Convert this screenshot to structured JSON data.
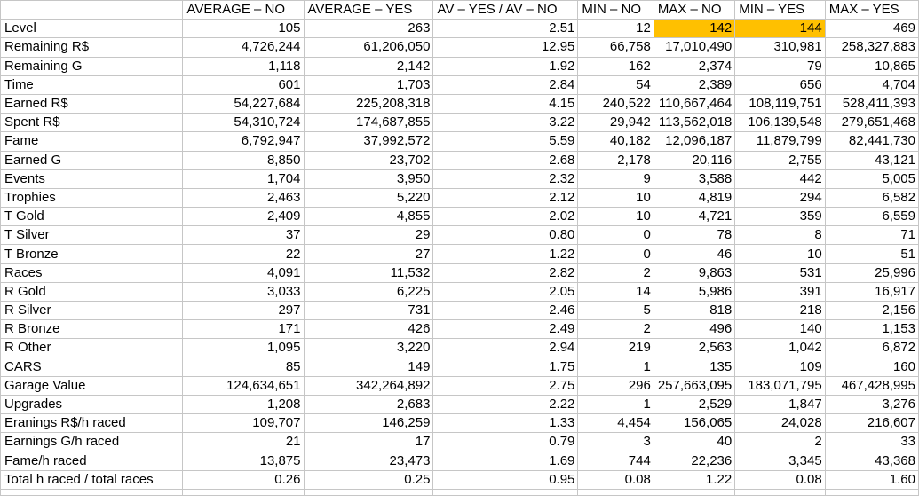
{
  "columns": [
    "AVERAGE – NO",
    "AVERAGE – YES",
    "AV – YES / AV – NO",
    "MIN – NO",
    "MAX – NO",
    "MIN – YES",
    "MAX – YES"
  ],
  "highlight_color": "#ffc000",
  "rows": [
    {
      "label": "Level",
      "values": [
        "105",
        "263",
        "2.51",
        "12",
        "142",
        "144",
        "469"
      ],
      "highlight": [
        4,
        5
      ]
    },
    {
      "label": "Remaining R$",
      "values": [
        "4,726,244",
        "61,206,050",
        "12.95",
        "66,758",
        "17,010,490",
        "310,981",
        "258,327,883"
      ]
    },
    {
      "label": "Remaining G",
      "values": [
        "1,118",
        "2,142",
        "1.92",
        "162",
        "2,374",
        "79",
        "10,865"
      ]
    },
    {
      "label": "Time",
      "values": [
        "601",
        "1,703",
        "2.84",
        "54",
        "2,389",
        "656",
        "4,704"
      ]
    },
    {
      "label": "Earned R$",
      "values": [
        "54,227,684",
        "225,208,318",
        "4.15",
        "240,522",
        "110,667,464",
        "108,119,751",
        "528,411,393"
      ]
    },
    {
      "label": "Spent R$",
      "values": [
        "54,310,724",
        "174,687,855",
        "3.22",
        "29,942",
        "113,562,018",
        "106,139,548",
        "279,651,468"
      ]
    },
    {
      "label": "Fame",
      "values": [
        "6,792,947",
        "37,992,572",
        "5.59",
        "40,182",
        "12,096,187",
        "11,879,799",
        "82,441,730"
      ]
    },
    {
      "label": "Earned G",
      "values": [
        "8,850",
        "23,702",
        "2.68",
        "2,178",
        "20,116",
        "2,755",
        "43,121"
      ]
    },
    {
      "label": "Events",
      "values": [
        "1,704",
        "3,950",
        "2.32",
        "9",
        "3,588",
        "442",
        "5,005"
      ]
    },
    {
      "label": "Trophies",
      "values": [
        "2,463",
        "5,220",
        "2.12",
        "10",
        "4,819",
        "294",
        "6,582"
      ]
    },
    {
      "label": "T Gold",
      "values": [
        "2,409",
        "4,855",
        "2.02",
        "10",
        "4,721",
        "359",
        "6,559"
      ]
    },
    {
      "label": "T Silver",
      "values": [
        "37",
        "29",
        "0.80",
        "0",
        "78",
        "8",
        "71"
      ]
    },
    {
      "label": "T Bronze",
      "values": [
        "22",
        "27",
        "1.22",
        "0",
        "46",
        "10",
        "51"
      ]
    },
    {
      "label": "Races",
      "values": [
        "4,091",
        "11,532",
        "2.82",
        "2",
        "9,863",
        "531",
        "25,996"
      ]
    },
    {
      "label": "R Gold",
      "values": [
        "3,033",
        "6,225",
        "2.05",
        "14",
        "5,986",
        "391",
        "16,917"
      ]
    },
    {
      "label": "R Silver",
      "values": [
        "297",
        "731",
        "2.46",
        "5",
        "818",
        "218",
        "2,156"
      ]
    },
    {
      "label": "R Bronze",
      "values": [
        "171",
        "426",
        "2.49",
        "2",
        "496",
        "140",
        "1,153"
      ]
    },
    {
      "label": "R Other",
      "values": [
        "1,095",
        "3,220",
        "2.94",
        "219",
        "2,563",
        "1,042",
        "6,872"
      ]
    },
    {
      "label": "CARS",
      "values": [
        "85",
        "149",
        "1.75",
        "1",
        "135",
        "109",
        "160"
      ]
    },
    {
      "label": "Garage Value",
      "values": [
        "124,634,651",
        "342,264,892",
        "2.75",
        "296",
        "257,663,095",
        "183,071,795",
        "467,428,995"
      ]
    },
    {
      "label": "Upgrades",
      "values": [
        "1,208",
        "2,683",
        "2.22",
        "1",
        "2,529",
        "1,847",
        "3,276"
      ]
    },
    {
      "label": "Eranings R$/h raced",
      "values": [
        "109,707",
        "146,259",
        "1.33",
        "4,454",
        "156,065",
        "24,028",
        "216,607"
      ]
    },
    {
      "label": "Earnings G/h raced",
      "values": [
        "21",
        "17",
        "0.79",
        "3",
        "40",
        "2",
        "33"
      ]
    },
    {
      "label": "Fame/h raced",
      "values": [
        "13,875",
        "23,473",
        "1.69",
        "744",
        "22,236",
        "3,345",
        "43,368"
      ]
    },
    {
      "label": "Total h raced / total races",
      "values": [
        "0.26",
        "0.25",
        "0.95",
        "0.08",
        "1.22",
        "0.08",
        "1.60"
      ]
    }
  ]
}
